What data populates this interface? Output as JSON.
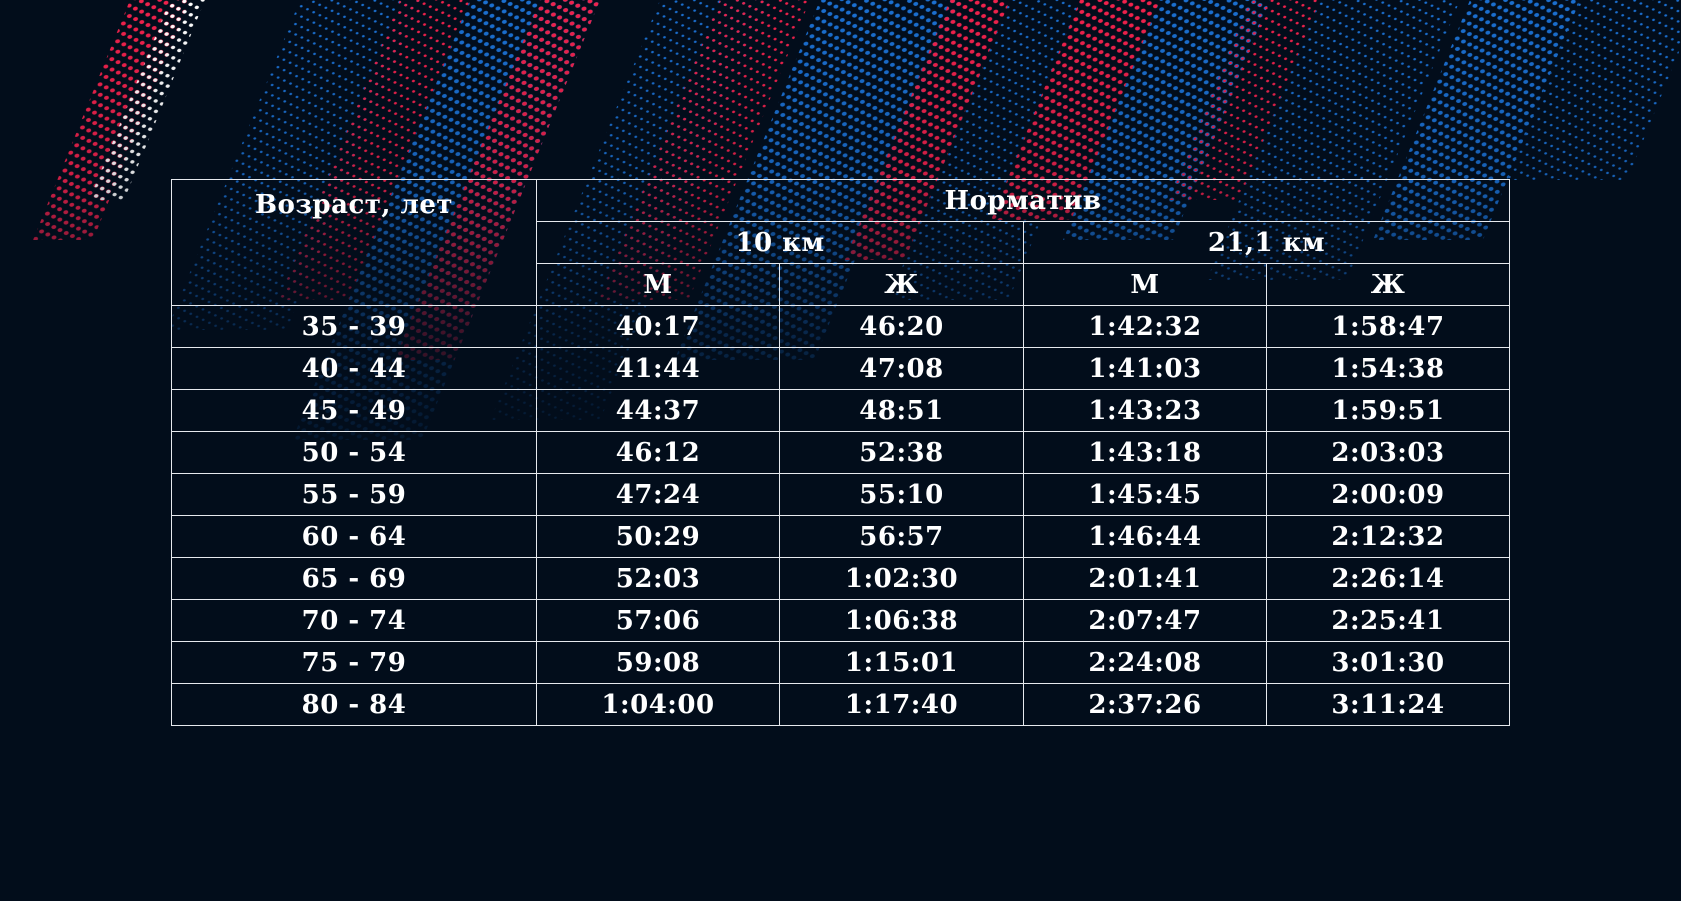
{
  "table": {
    "header": {
      "age": "Возраст, лет",
      "norm": "Норматив",
      "distances": [
        "10 км",
        "21,1 км"
      ],
      "genders": [
        "М",
        "Ж",
        "М",
        "Ж"
      ]
    },
    "rows": [
      {
        "age": "35 - 39",
        "m10": "40:17",
        "f10": "46:20",
        "m21": "1:42:32",
        "f21": "1:58:47"
      },
      {
        "age": "40 - 44",
        "m10": "41:44",
        "f10": "47:08",
        "m21": "1:41:03",
        "f21": "1:54:38"
      },
      {
        "age": "45 - 49",
        "m10": "44:37",
        "f10": "48:51",
        "m21": "1:43:23",
        "f21": "1:59:51"
      },
      {
        "age": "50 - 54",
        "m10": "46:12",
        "f10": "52:38",
        "m21": "1:43:18",
        "f21": "2:03:03"
      },
      {
        "age": "55 - 59",
        "m10": "47:24",
        "f10": "55:10",
        "m21": "1:45:45",
        "f21": "2:00:09"
      },
      {
        "age": "60 - 64",
        "m10": "50:29",
        "f10": "56:57",
        "m21": "1:46:44",
        "f21": "2:12:32"
      },
      {
        "age": "65 - 69",
        "m10": "52:03",
        "f10": "1:02:30",
        "m21": "2:01:41",
        "f21": "2:26:14"
      },
      {
        "age": "70 - 74",
        "m10": "57:06",
        "f10": "1:06:38",
        "m21": "2:07:47",
        "f21": "2:25:41"
      },
      {
        "age": "75 - 79",
        "m10": "59:08",
        "f10": "1:15:01",
        "m21": "2:24:08",
        "f21": "3:01:30"
      },
      {
        "age": "80 - 84",
        "m10": "1:04:00",
        "f10": "1:17:40",
        "m21": "2:37:26",
        "f21": "3:11:24"
      }
    ]
  },
  "colors": {
    "background": "#020d1b",
    "stripe_red": "#f0224c",
    "stripe_blue": "#1b6fd0",
    "stripe_white": "#ffffff",
    "grid_line": "#e6e9ee",
    "text": "#ffffff"
  }
}
